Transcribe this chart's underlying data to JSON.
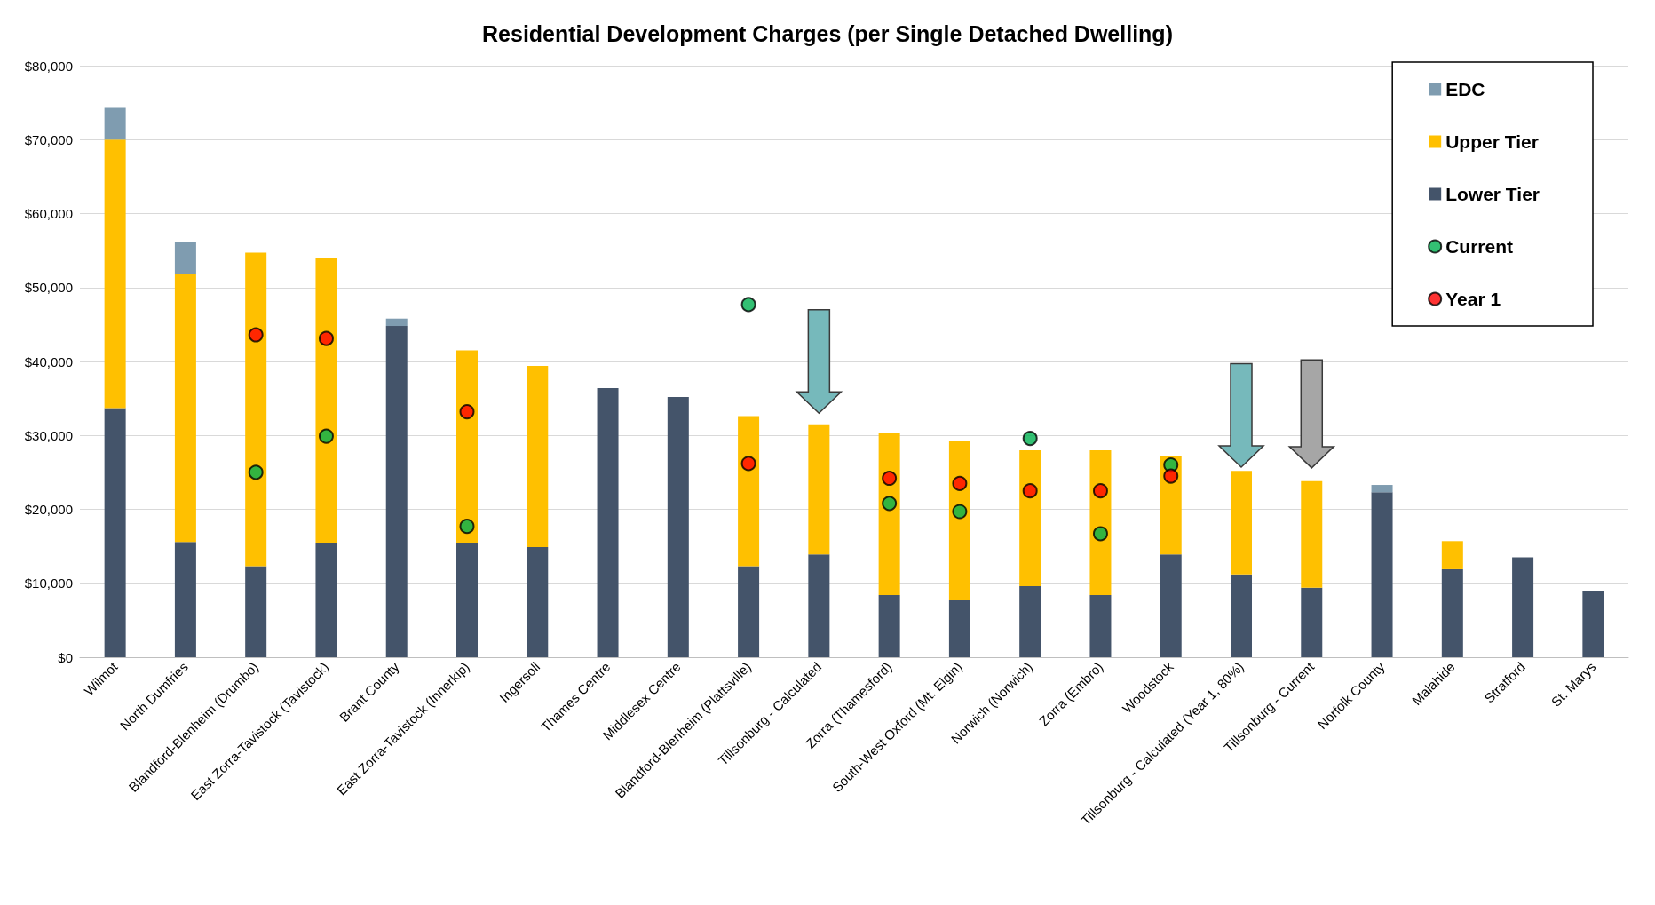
{
  "chart_data": {
    "type": "bar",
    "title": "Residential Development Charges (per Single Detached Dwelling)",
    "stacked": true,
    "grid": "y",
    "legend": "top right",
    "categories": [
      "Wilmot",
      "North Dumfries",
      "Blandford-Blenheim (Drumbo)",
      "East Zorra-Tavistock (Tavistock)",
      "Brant County",
      "East Zorra-Tavistock (Innerkip)",
      "Ingersoll",
      "Thames Centre",
      "Middlesex Centre",
      "Blandford-Blenheim (Plattsville)",
      "Tillsonburg - Calculated",
      "Zorra (Thamesford)",
      "South-West Oxford (Mt. Elgin)",
      "Norwich (Norwich)",
      "Zorra (Embro)",
      "Woodstock",
      "Tillsonburg - Calculated (Year 1, 80%)",
      "Tillsonburg - Current",
      "Norfolk County",
      "Malahide",
      "Stratford",
      "St. Marys"
    ],
    "ylim": [
      0,
      80000
    ],
    "yticks": [
      {
        "value": 0,
        "label": "$0"
      },
      {
        "value": 10000,
        "label": "$10,000"
      },
      {
        "value": 20000,
        "label": "$20,000"
      },
      {
        "value": 30000,
        "label": "$30,000"
      },
      {
        "value": 40000,
        "label": "$40,000"
      },
      {
        "value": 50000,
        "label": "$50,000"
      },
      {
        "value": 60000,
        "label": "$60,000"
      },
      {
        "value": 70000,
        "label": "$70,000"
      },
      {
        "value": 80000,
        "label": "$80,000"
      }
    ],
    "series": [
      {
        "name": "Lower Tier",
        "color": "#44546a",
        "values": [
          33700,
          15600,
          12300,
          15500,
          44800,
          15500,
          14900,
          36400,
          35200,
          12300,
          13900,
          8400,
          7700,
          9600,
          8400,
          13900,
          11200,
          9400,
          22300,
          11900,
          13500,
          8900
        ]
      },
      {
        "name": "Upper Tier",
        "color": "#ffc000",
        "values": [
          36300,
          36200,
          42400,
          38500,
          null,
          26000,
          24500,
          null,
          null,
          20300,
          17600,
          21900,
          21600,
          18400,
          19600,
          13300,
          14000,
          14400,
          null,
          3800,
          null,
          null
        ]
      },
      {
        "name": "EDC",
        "color": "#7f9cb0",
        "values": [
          4300,
          4400,
          null,
          null,
          1000,
          null,
          null,
          null,
          null,
          null,
          null,
          null,
          null,
          null,
          null,
          null,
          null,
          null,
          1000,
          null,
          null,
          null
        ]
      },
      {
        "name": "Current",
        "type": "scatter",
        "marker": "circle",
        "color": "#00b050",
        "x": [
          "Blandford-Blenheim (Drumbo)",
          "East Zorra-Tavistock (Tavistock)",
          "East Zorra-Tavistock (Innerkip)",
          "Blandford-Blenheim (Plattsville)",
          "Zorra (Thamesford)",
          "South-West Oxford (Mt. Elgin)",
          "Norwich (Norwich)",
          "Zorra (Embro)",
          "Woodstock"
        ],
        "values": [
          25000,
          29900,
          17700,
          47700,
          20800,
          19700,
          29600,
          16700,
          26000
        ]
      },
      {
        "name": "Year 1",
        "type": "scatter",
        "marker": "circle",
        "color": "#ff0000",
        "x": [
          "Blandford-Blenheim (Drumbo)",
          "East Zorra-Tavistock (Tavistock)",
          "East Zorra-Tavistock (Innerkip)",
          "Blandford-Blenheim (Plattsville)",
          "Zorra (Thamesford)",
          "South-West Oxford (Mt. Elgin)",
          "Norwich (Norwich)",
          "Zorra (Embro)",
          "Woodstock"
        ],
        "values": [
          43600,
          43100,
          33200,
          26200,
          24200,
          23500,
          22500,
          22500,
          24500
        ]
      }
    ]
  }
}
